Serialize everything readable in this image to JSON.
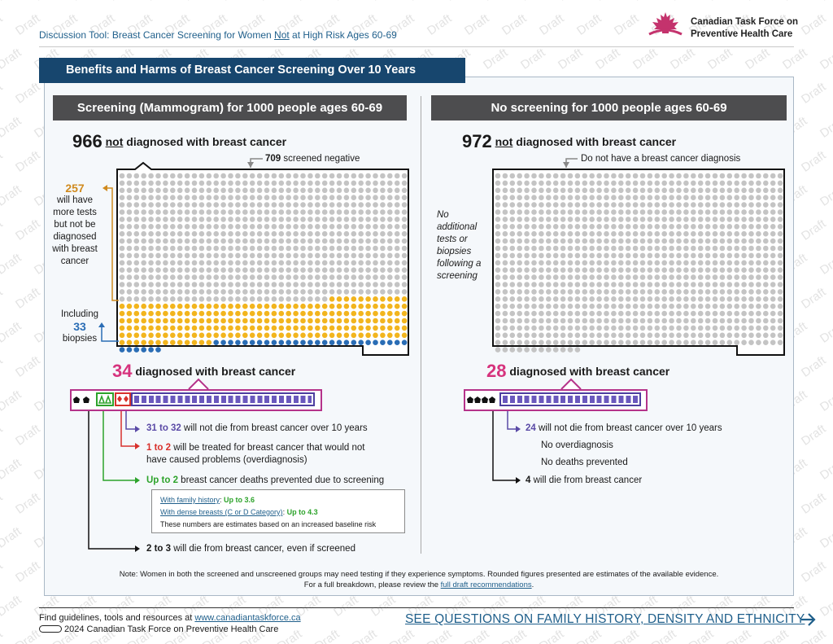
{
  "header": {
    "topic_prefix": "Discussion Tool: Breast Cancer Screening for Women ",
    "topic_underlined": "Not",
    "topic_suffix": " at High Risk Ages 60-69",
    "org_line1": "Canadian Task Force on",
    "org_line2": "Preventive Health Care",
    "logo_icon": "maple-leaf-icon",
    "watermark_word": "Draft"
  },
  "banner": {
    "title": "Benefits and Harms of Breast Cancer Screening Over 10 Years"
  },
  "left": {
    "heading": "Screening (Mammogram) for 1000 people ages 60-69",
    "not_dx_num": "966",
    "not_dx_underlined": "not",
    "not_dx_text": " diagnosed with breast cancer",
    "screened_negative_num": "709",
    "screened_negative_text": " screened negative",
    "more_tests_num": "257",
    "more_tests_lines": [
      "will have",
      "more tests",
      "but not be",
      "diagnosed",
      "with breast",
      "cancer"
    ],
    "biopsy_prefix": "Including",
    "biopsy_num": "33",
    "biopsy_suffix": "biopsies",
    "dx_num": "34",
    "dx_text": " diagnosed with breast cancer",
    "outcomes": {
      "not_die_num": "31 to 32",
      "not_die_text": " will not die from breast cancer over 10 years",
      "overdx_num": "1 to 2",
      "overdx_text": " will be treated for breast cancer that would not",
      "overdx_text2": "have caused problems (overdiagnosis)",
      "prevented_num": "Up to 2",
      "prevented_text": " breast cancer deaths prevented due to screening",
      "die_num": "2 to 3",
      "die_text": " will die from breast cancer, even if screened"
    },
    "info_box": {
      "family_link": "With family history",
      "family_value": "Up to 3.6",
      "dense_link": "With dense breasts (C or D Category)",
      "dense_value": "Up to 4.3",
      "note": "These numbers are estimates based on an increased baseline risk"
    },
    "grid": {
      "grey": 709,
      "orange": 224,
      "blue": 33,
      "total": 966
    }
  },
  "right": {
    "heading": "No screening for 1000 people ages 60-69",
    "not_dx_num": "972",
    "not_dx_underlined": "not",
    "not_dx_text": " diagnosed with breast cancer",
    "no_dx_label": "Do not have a breast cancer diagnosis",
    "no_tests_lines": [
      "No",
      "additional",
      "tests or",
      "biopsies",
      "following a",
      "screening"
    ],
    "dx_num": "28",
    "dx_text": " diagnosed with breast cancer",
    "outcomes": {
      "not_die_num": "24",
      "not_die_text": " will not die from breast cancer over 10 years",
      "no_overdx": "No overdiagnosis",
      "no_prevented": "No deaths prevented",
      "die_num": "4",
      "die_text": " will die from breast cancer"
    },
    "grid": {
      "grey": 972,
      "total": 972
    }
  },
  "note": {
    "line1": "Note: Women in both the screened and unscreened groups may need testing if they experience symptoms. Rounded figures presented are estimates of the available evidence.",
    "line2_prefix": "For a full breakdown, please review the ",
    "line2_link": "full draft recommendations",
    "line2_suffix": "."
  },
  "footer": {
    "resources_prefix": "Find guidelines, tools and resources at ",
    "resources_link": "www.canadiantaskforce.ca",
    "copyright": "2024 Canadian Task Force on Preventive Health Care",
    "license_icon": "creative-commons-icon",
    "cta": "SEE QUESTIONS ON FAMILY HISTORY, DENSITY AND ETHNICITY",
    "cta_icon": "arrow-right-icon"
  },
  "colors": {
    "navy": "#17466e",
    "grey_dot": "#c4c4c4",
    "orange": "#f2b51e",
    "blue": "#2a6db5",
    "magenta": "#b5338a",
    "purple": "#5a4aa6",
    "red": "#d8312c",
    "green": "#2da32b"
  }
}
